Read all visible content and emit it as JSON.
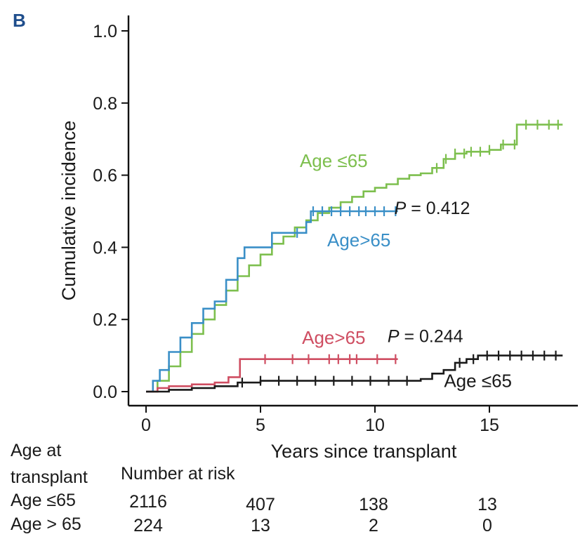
{
  "panel_label": "B",
  "chart_data": {
    "type": "line",
    "subtype": "step",
    "xlabel": "Years since transplant",
    "ylabel": "Cumulative incidence",
    "xlim": [
      -1,
      19
    ],
    "ylim": [
      -0.035,
      1.05
    ],
    "xticks": [
      0,
      5,
      10,
      15
    ],
    "yticks": [
      0.0,
      0.2,
      0.4,
      0.6,
      0.8,
      1.0
    ],
    "ytick_labels": [
      "0.0",
      "0.2",
      "0.4",
      "0.6",
      "0.8",
      "1.0"
    ],
    "grid": false,
    "series": [
      {
        "name": "Age ≤65",
        "color": "#7dbf4e",
        "label_pos": [
          8.2,
          0.64
        ],
        "x": [
          0,
          0.5,
          1,
          1.5,
          2,
          2.5,
          3,
          3.5,
          4,
          4.5,
          5,
          5.5,
          6,
          6.5,
          7,
          7.5,
          8,
          8.5,
          9,
          9.5,
          10,
          10.5,
          11,
          11.5,
          12,
          12.5,
          13,
          13.5,
          14,
          14.5,
          15,
          15.5,
          16,
          16.2,
          16.5,
          17,
          17.5,
          18.2
        ],
        "y": [
          0.0,
          0.03,
          0.07,
          0.11,
          0.16,
          0.2,
          0.24,
          0.28,
          0.32,
          0.35,
          0.38,
          0.41,
          0.43,
          0.455,
          0.475,
          0.495,
          0.51,
          0.525,
          0.54,
          0.555,
          0.565,
          0.575,
          0.59,
          0.6,
          0.605,
          0.62,
          0.645,
          0.66,
          0.665,
          0.665,
          0.67,
          0.685,
          0.685,
          0.74,
          0.74,
          0.74,
          0.74,
          0.74
        ],
        "censor_x": [
          12.7,
          13.1,
          13.5,
          13.9,
          14.2,
          14.6,
          15.0,
          15.6,
          16.1,
          16.6,
          17.1,
          17.6,
          18.0
        ]
      },
      {
        "name": "Age>65",
        "color": "#3a8fc7",
        "label_pos": [
          9.3,
          0.42
        ],
        "x": [
          0,
          0.3,
          0.6,
          1,
          1.5,
          2,
          2.5,
          3,
          3.5,
          4,
          4.3,
          5,
          5.5,
          6,
          6.5,
          7,
          7.2,
          8,
          9,
          10,
          11
        ],
        "y": [
          0.0,
          0.03,
          0.06,
          0.11,
          0.15,
          0.19,
          0.23,
          0.25,
          0.31,
          0.37,
          0.4,
          0.4,
          0.44,
          0.44,
          0.44,
          0.47,
          0.5,
          0.5,
          0.5,
          0.5,
          0.5
        ],
        "censor_x": [
          6.6,
          7.3,
          7.7,
          8.1,
          8.5,
          8.9,
          9.3,
          9.6,
          10.0,
          10.4,
          10.9
        ]
      },
      {
        "name": "Age>65",
        "color": "#cf4e62",
        "label_pos": [
          8.2,
          0.15
        ],
        "x": [
          0,
          0.5,
          1,
          2,
          3,
          3.5,
          3.6,
          4.0,
          4.1,
          6,
          8,
          10,
          11
        ],
        "y": [
          0.0,
          0.01,
          0.015,
          0.02,
          0.025,
          0.025,
          0.04,
          0.04,
          0.09,
          0.09,
          0.09,
          0.09,
          0.09
        ],
        "censor_x": [
          5.2,
          6.4,
          7.1,
          8.0,
          8.4,
          8.9,
          9.2,
          10.1,
          10.9
        ]
      },
      {
        "name": "Age ≤65",
        "color": "#1a1a1a",
        "label_pos": [
          14.5,
          0.03
        ],
        "x": [
          0,
          1,
          2,
          3,
          4,
          5,
          6,
          7,
          8,
          9,
          10,
          11,
          12,
          12.5,
          13,
          13.5,
          14,
          14.5,
          15,
          16,
          17,
          18.2
        ],
        "y": [
          0.0,
          0.005,
          0.01,
          0.015,
          0.025,
          0.03,
          0.03,
          0.03,
          0.03,
          0.03,
          0.03,
          0.03,
          0.035,
          0.05,
          0.06,
          0.08,
          0.09,
          0.1,
          0.1,
          0.1,
          0.1,
          0.1
        ],
        "censor_x": [
          4.2,
          5.0,
          5.8,
          6.6,
          7.4,
          8.2,
          9.0,
          9.8,
          10.6,
          11.4,
          13.7,
          14.3,
          14.9,
          15.4,
          15.9,
          16.4,
          16.9,
          17.4,
          17.9
        ]
      }
    ],
    "annotations": [
      {
        "text_prefix": "P",
        "text": " = 0.412",
        "x": 12.5,
        "y": 0.51
      },
      {
        "text_prefix": "P",
        "text": " = 0.244",
        "x": 12.2,
        "y": 0.155
      }
    ]
  },
  "risk_table": {
    "header_col1_line1": "Age at",
    "header_col1_line2": "transplant",
    "header_title": "Number at risk",
    "rows": [
      {
        "label": "Age ≤65",
        "values": [
          "2116",
          "407",
          "138",
          "13"
        ]
      },
      {
        "label": "Age > 65",
        "values": [
          "224",
          "13",
          "2",
          "0"
        ]
      }
    ]
  }
}
